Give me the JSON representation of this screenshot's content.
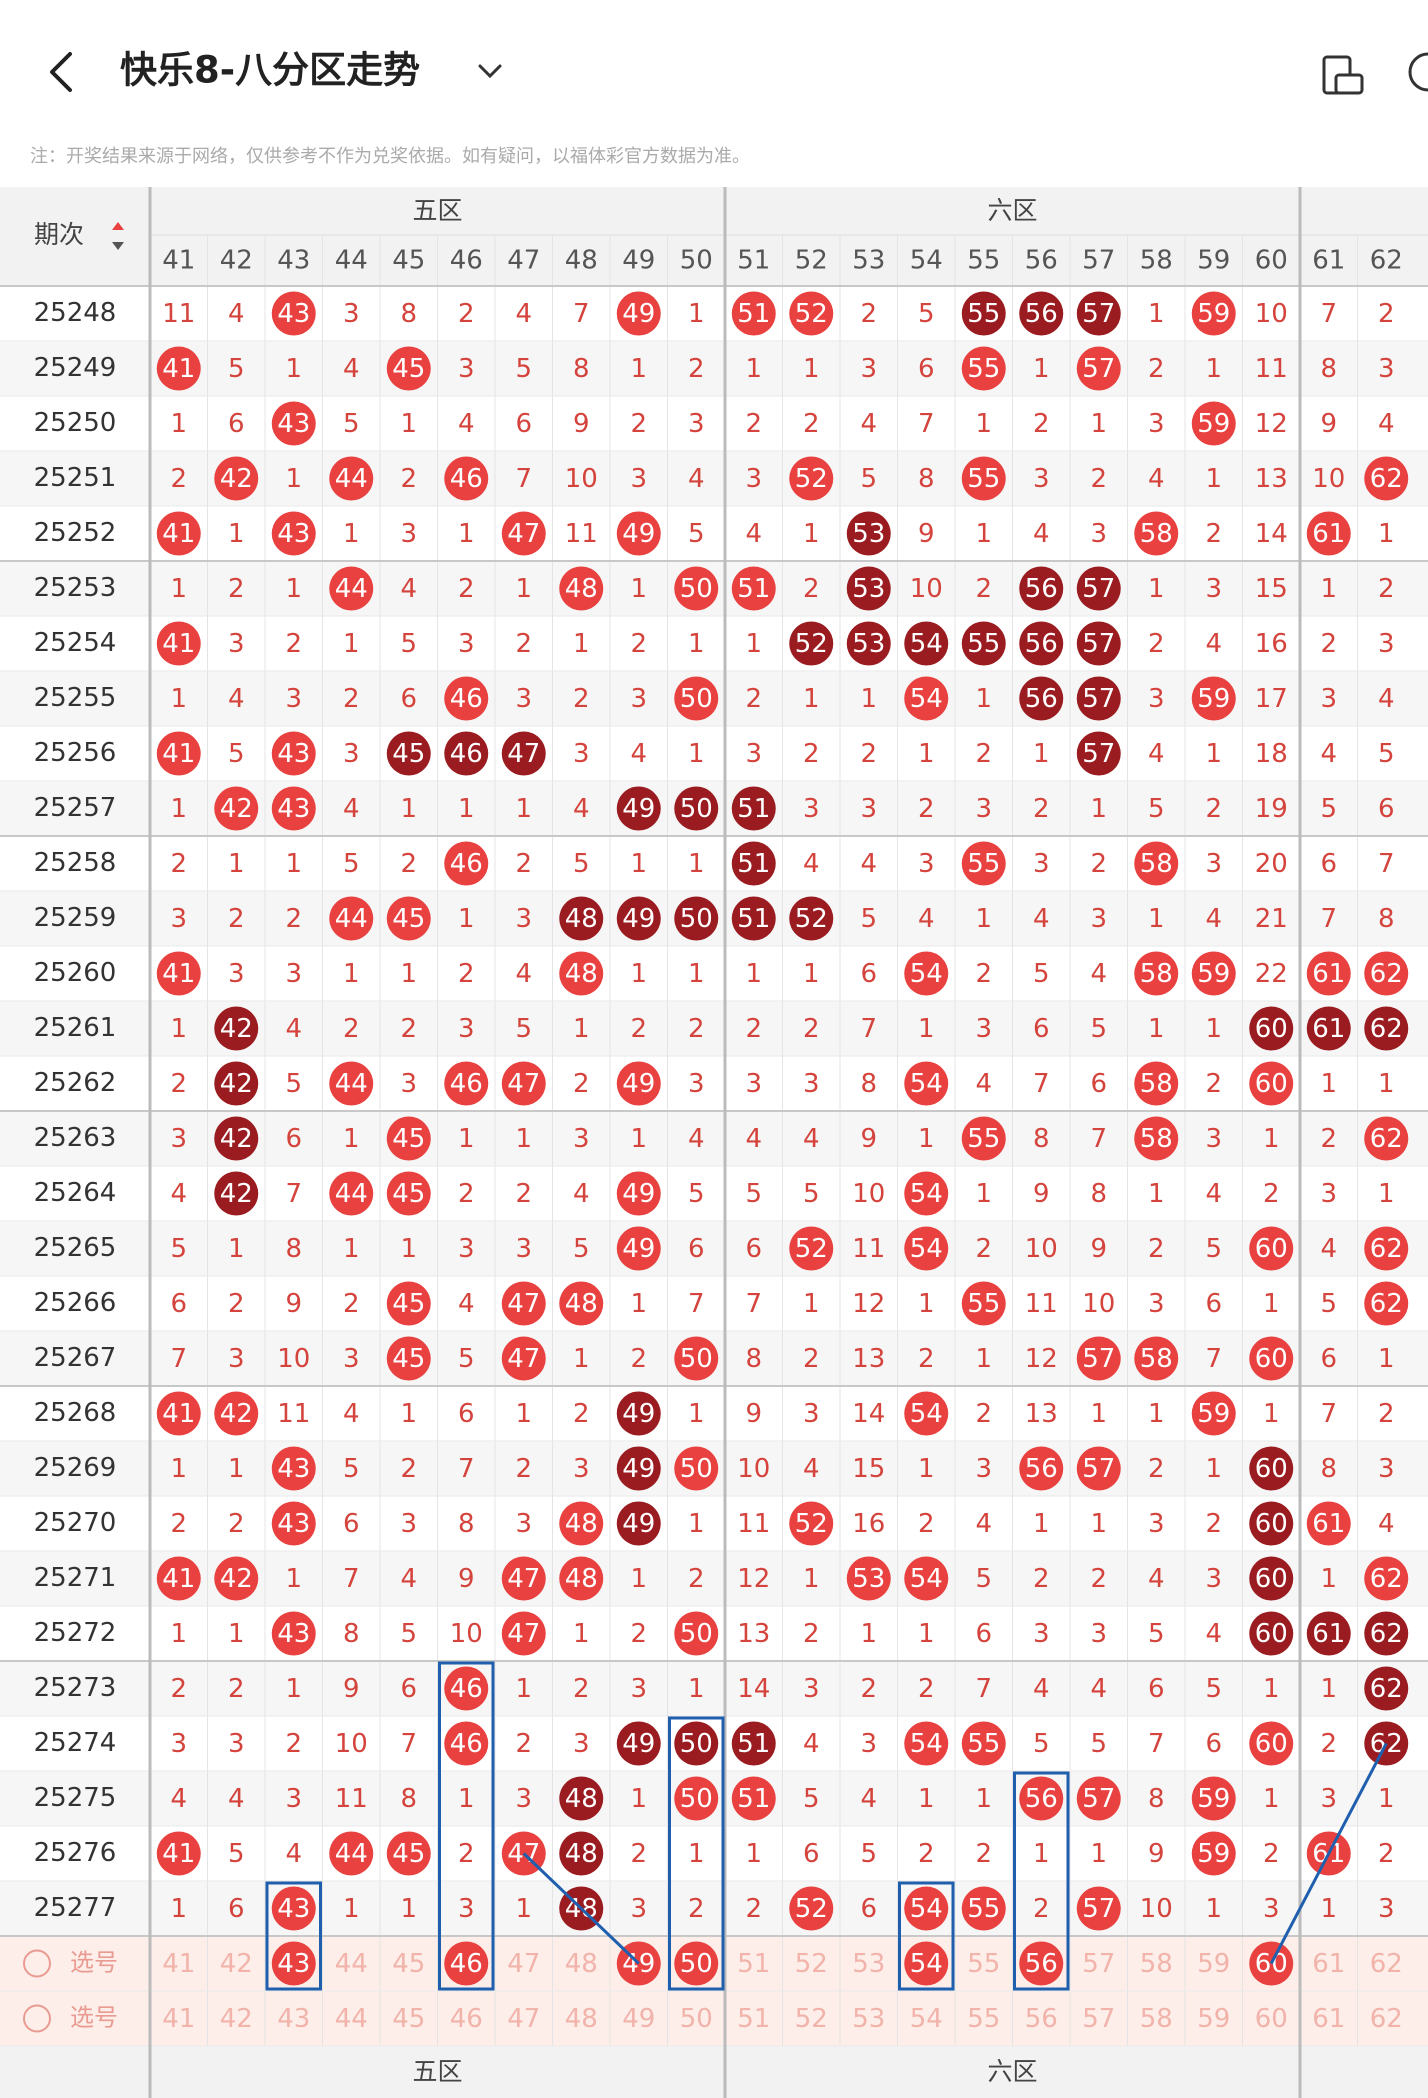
{
  "header": {
    "title": "快乐8-八分区走势",
    "note": "注：开奖结果来源于网络，仅供参考不作为兑奖依据。如有疑问，以福体彩官方数据为准。"
  },
  "table": {
    "period_label": "期次",
    "zones": [
      "五区",
      "六区"
    ],
    "columns": [
      41,
      42,
      43,
      44,
      45,
      46,
      47,
      48,
      49,
      50,
      51,
      52,
      53,
      54,
      55,
      56,
      57,
      58,
      59,
      60,
      61,
      62
    ],
    "rows": [
      {
        "issue": "25248",
        "cells": [
          11,
          4,
          43,
          3,
          8,
          2,
          4,
          7,
          49,
          1,
          51,
          52,
          2,
          5,
          55,
          56,
          57,
          1,
          59,
          10,
          7,
          2
        ],
        "kinds": "nnrnnnnnrnrrnndddnrnnn"
      },
      {
        "issue": "25249",
        "cells": [
          41,
          5,
          1,
          4,
          45,
          3,
          5,
          8,
          1,
          2,
          1,
          1,
          3,
          6,
          55,
          1,
          57,
          2,
          1,
          11,
          8,
          3
        ],
        "kinds": "rnnnrnnnnnnnnnrnrnnnnn"
      },
      {
        "issue": "25250",
        "cells": [
          1,
          6,
          43,
          5,
          1,
          4,
          6,
          9,
          2,
          3,
          2,
          2,
          4,
          7,
          1,
          2,
          1,
          3,
          59,
          12,
          9,
          4
        ],
        "kinds": "nnrnnnnnnnnnnnnnnnrnnn"
      },
      {
        "issue": "25251",
        "cells": [
          2,
          42,
          1,
          44,
          2,
          46,
          7,
          10,
          3,
          4,
          3,
          52,
          5,
          8,
          55,
          3,
          2,
          4,
          1,
          13,
          10,
          62
        ],
        "kinds": "nrnrnrnnnnnrnnrnnnnnnr"
      },
      {
        "issue": "25252",
        "cells": [
          41,
          1,
          43,
          1,
          3,
          1,
          47,
          11,
          49,
          5,
          4,
          1,
          53,
          9,
          1,
          4,
          3,
          58,
          2,
          14,
          61,
          1
        ],
        "kinds": "rnrnnnrnrnnndnnnnrnnrn"
      },
      {
        "issue": "25253",
        "cells": [
          1,
          2,
          1,
          44,
          4,
          2,
          1,
          48,
          1,
          50,
          51,
          2,
          53,
          10,
          2,
          56,
          57,
          1,
          3,
          15,
          1,
          2
        ],
        "kinds": "nnnrnnnrnrrndnnddnnnnn"
      },
      {
        "issue": "25254",
        "cells": [
          41,
          3,
          2,
          1,
          5,
          3,
          2,
          1,
          2,
          1,
          1,
          52,
          53,
          54,
          55,
          56,
          57,
          2,
          4,
          16,
          2,
          3
        ],
        "kinds": "rnnnnnnnnnnddddddnnnnn"
      },
      {
        "issue": "25255",
        "cells": [
          1,
          4,
          3,
          2,
          6,
          46,
          3,
          2,
          3,
          50,
          2,
          1,
          1,
          54,
          1,
          56,
          57,
          3,
          59,
          17,
          3,
          4
        ],
        "kinds": "nnnnnrnnnrnnnrnddnrnnn"
      },
      {
        "issue": "25256",
        "cells": [
          41,
          5,
          43,
          3,
          45,
          46,
          47,
          3,
          4,
          1,
          3,
          2,
          2,
          1,
          2,
          1,
          57,
          4,
          1,
          18,
          4,
          5
        ],
        "kinds": "rnrndddnnnnnnnnndnnnnn"
      },
      {
        "issue": "25257",
        "cells": [
          1,
          42,
          43,
          4,
          1,
          1,
          1,
          4,
          49,
          50,
          51,
          3,
          3,
          2,
          3,
          2,
          1,
          5,
          2,
          19,
          5,
          6
        ],
        "kinds": "nrrnnnnndddnnnnnnnnnnn"
      },
      {
        "issue": "25258",
        "cells": [
          2,
          1,
          1,
          5,
          2,
          46,
          2,
          5,
          1,
          1,
          51,
          4,
          4,
          3,
          55,
          3,
          2,
          58,
          3,
          20,
          6,
          7
        ],
        "kinds": "nnnnnrnnnndnnnrnnrnnnn"
      },
      {
        "issue": "25259",
        "cells": [
          3,
          2,
          2,
          44,
          45,
          1,
          3,
          48,
          49,
          50,
          51,
          52,
          5,
          4,
          1,
          4,
          3,
          1,
          4,
          21,
          7,
          8
        ],
        "kinds": "nnnrrnndddddnnnnnnnnnn"
      },
      {
        "issue": "25260",
        "cells": [
          41,
          3,
          3,
          1,
          1,
          2,
          4,
          48,
          1,
          1,
          1,
          1,
          6,
          54,
          2,
          5,
          4,
          58,
          59,
          22,
          61,
          62
        ],
        "kinds": "rnnnnnnrnnnnnrnnnrrnrr"
      },
      {
        "issue": "25261",
        "cells": [
          1,
          42,
          4,
          2,
          2,
          3,
          5,
          1,
          2,
          2,
          2,
          2,
          7,
          1,
          3,
          6,
          5,
          1,
          1,
          60,
          61,
          62
        ],
        "kinds": "ndnnnnnnnnnnnnnnnnnddd"
      },
      {
        "issue": "25262",
        "cells": [
          2,
          42,
          5,
          44,
          3,
          46,
          47,
          2,
          49,
          3,
          3,
          3,
          8,
          54,
          4,
          7,
          6,
          58,
          2,
          60,
          1,
          1
        ],
        "kinds": "ndnrnrrnrnnnnrnnnrnrnn"
      },
      {
        "issue": "25263",
        "cells": [
          3,
          42,
          6,
          1,
          45,
          1,
          1,
          3,
          1,
          4,
          4,
          4,
          9,
          1,
          55,
          8,
          7,
          58,
          3,
          1,
          2,
          62
        ],
        "kinds": "ndnnrnnnnnnnnnrnnrnnnr"
      },
      {
        "issue": "25264",
        "cells": [
          4,
          42,
          7,
          44,
          45,
          2,
          2,
          4,
          49,
          5,
          5,
          5,
          10,
          54,
          1,
          9,
          8,
          1,
          4,
          2,
          3,
          1
        ],
        "kinds": "ndnrrnnnrnnnnrnnnnnnnn"
      },
      {
        "issue": "25265",
        "cells": [
          5,
          1,
          8,
          1,
          1,
          3,
          3,
          5,
          49,
          6,
          6,
          52,
          11,
          54,
          2,
          10,
          9,
          2,
          5,
          60,
          4,
          62
        ],
        "kinds": "nnnnnnnnrnnrnrnnnnnrnr"
      },
      {
        "issue": "25266",
        "cells": [
          6,
          2,
          9,
          2,
          45,
          4,
          47,
          48,
          1,
          7,
          7,
          1,
          12,
          1,
          55,
          11,
          10,
          3,
          6,
          1,
          5,
          62
        ],
        "kinds": "nnnnrnrrnnnnnnrnnnnnnr"
      },
      {
        "issue": "25267",
        "cells": [
          7,
          3,
          10,
          3,
          45,
          5,
          47,
          1,
          2,
          50,
          8,
          2,
          13,
          2,
          1,
          12,
          57,
          58,
          7,
          60,
          6,
          1
        ],
        "kinds": "nnnnrnrnnrnnnnnnrrnrnn"
      },
      {
        "issue": "25268",
        "cells": [
          41,
          42,
          11,
          4,
          1,
          6,
          1,
          2,
          49,
          1,
          9,
          3,
          14,
          54,
          2,
          13,
          1,
          1,
          59,
          1,
          7,
          2
        ],
        "kinds": "rrnnnnnndnnnnrnnnnrnnn"
      },
      {
        "issue": "25269",
        "cells": [
          1,
          1,
          43,
          5,
          2,
          7,
          2,
          3,
          49,
          50,
          10,
          4,
          15,
          1,
          3,
          56,
          57,
          2,
          1,
          60,
          8,
          3
        ],
        "kinds": "nnrnnnnndrnnnnnrrnndnn"
      },
      {
        "issue": "25270",
        "cells": [
          2,
          2,
          43,
          6,
          3,
          8,
          3,
          48,
          49,
          1,
          11,
          52,
          16,
          2,
          4,
          1,
          1,
          3,
          2,
          60,
          61,
          4
        ],
        "kinds": "nnrnnnnrdnnrnnnnnnndrn"
      },
      {
        "issue": "25271",
        "cells": [
          41,
          42,
          1,
          7,
          4,
          9,
          47,
          48,
          1,
          2,
          12,
          1,
          53,
          54,
          5,
          2,
          2,
          4,
          3,
          60,
          1,
          62
        ],
        "kinds": "rrnnnnrrnnnnrrnnnnndnr"
      },
      {
        "issue": "25272",
        "cells": [
          1,
          1,
          43,
          8,
          5,
          10,
          47,
          1,
          2,
          50,
          13,
          2,
          1,
          1,
          6,
          3,
          3,
          5,
          4,
          60,
          61,
          62
        ],
        "kinds": "nnrnnnrnnrnnnnnnnnnddd"
      },
      {
        "issue": "25273",
        "cells": [
          2,
          2,
          1,
          9,
          6,
          46,
          1,
          2,
          3,
          1,
          14,
          3,
          2,
          2,
          7,
          4,
          4,
          6,
          5,
          1,
          1,
          62
        ],
        "kinds": "nnnnnrnnnnnnnnnnnnnnnd"
      },
      {
        "issue": "25274",
        "cells": [
          3,
          3,
          2,
          10,
          7,
          46,
          2,
          3,
          49,
          50,
          51,
          4,
          3,
          54,
          55,
          5,
          5,
          7,
          6,
          60,
          2,
          62
        ],
        "kinds": "nnnnnrnndddnnrrnnnnrnd"
      },
      {
        "issue": "25275",
        "cells": [
          4,
          4,
          3,
          11,
          8,
          1,
          3,
          48,
          1,
          50,
          51,
          5,
          4,
          1,
          1,
          56,
          57,
          8,
          59,
          1,
          3,
          1
        ],
        "kinds": "nnnnnnndnrrnnnnrrnrnnn"
      },
      {
        "issue": "25276",
        "cells": [
          41,
          5,
          4,
          44,
          45,
          2,
          47,
          48,
          2,
          1,
          1,
          6,
          5,
          2,
          2,
          1,
          1,
          9,
          59,
          2,
          61,
          2
        ],
        "kinds": "rnnrrnrdnnnnnnnnnnrnrn"
      },
      {
        "issue": "25277",
        "cells": [
          1,
          6,
          43,
          1,
          1,
          3,
          1,
          48,
          3,
          2,
          2,
          52,
          6,
          54,
          55,
          2,
          57,
          10,
          1,
          3,
          1,
          3
        ],
        "kinds": "nnrnnnndnnnrnrrnrnnnnn"
      }
    ],
    "select_rows": [
      {
        "label": "选号",
        "picked": [
          43,
          46,
          49,
          50,
          54,
          56,
          60
        ]
      },
      {
        "label": "选号",
        "picked": []
      }
    ]
  }
}
